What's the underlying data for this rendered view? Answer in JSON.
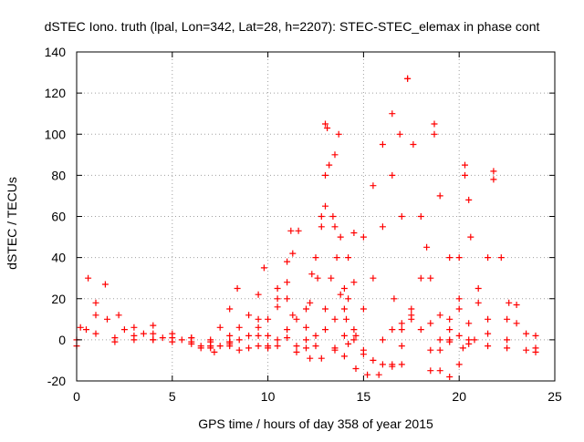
{
  "chart_data": {
    "type": "scatter",
    "title": "dSTEC Iono. truth (lpal, Lon=342, Lat=28, h=2207): STEC-STEC_elemax in phase cont",
    "xlabel": "GPS time / hours of day 358 of year 2015",
    "ylabel": "dSTEC  / TECUs",
    "xlim": [
      0,
      25
    ],
    "ylim": [
      -20,
      140
    ],
    "xticks": [
      0,
      5,
      10,
      15,
      20,
      25
    ],
    "yticks": [
      -20,
      0,
      20,
      40,
      60,
      80,
      100,
      120,
      140
    ],
    "grid": true,
    "marker": "+",
    "color": "#ff0000",
    "series": [
      {
        "x": [
          0.6,
          1.0,
          1.6,
          2.5,
          3.5,
          4.5,
          5.5,
          6.5,
          7.2
        ],
        "y": [
          30,
          18,
          10,
          5,
          3,
          1,
          0,
          -3,
          -6
        ]
      },
      {
        "x": [
          0.0,
          0.5,
          1.0,
          1.5
        ],
        "y": [
          0,
          5,
          12,
          27
        ]
      },
      {
        "x": [
          0.2,
          1.0,
          2.0,
          3.0,
          4.0,
          5.0,
          6.0,
          7.0
        ],
        "y": [
          6,
          3,
          1,
          0,
          0,
          -1,
          -2,
          -4
        ]
      },
      {
        "x": [
          2.2,
          3.0,
          4.0,
          5.0,
          6.0,
          7.0
        ],
        "y": [
          12,
          6,
          3,
          1,
          -1,
          -3
        ]
      },
      {
        "x": [
          0.0,
          2.0,
          4.0,
          6.0,
          8.0,
          10.0,
          12.0
        ],
        "y": [
          -3,
          -1,
          0,
          1,
          -1,
          -3,
          -4
        ]
      },
      {
        "x": [
          3.0,
          4.0,
          5.0,
          6.0,
          7.0,
          8.0,
          9.0
        ],
        "y": [
          2,
          7,
          3,
          1,
          -1,
          -3,
          -4
        ]
      },
      {
        "x": [
          6.5,
          7.0,
          7.5,
          8.0,
          8.4
        ],
        "y": [
          -4,
          0,
          6,
          15,
          25
        ]
      },
      {
        "x": [
          7.0,
          8.0,
          8.5,
          9.0,
          9.5,
          9.8
        ],
        "y": [
          -3,
          2,
          6,
          12,
          22,
          35
        ]
      },
      {
        "x": [
          7.5,
          8.5,
          9.5,
          10.5,
          11.0,
          11.3,
          11.6
        ],
        "y": [
          -3,
          0,
          6,
          16,
          28,
          42,
          53
        ]
      },
      {
        "x": [
          8.0,
          9.0,
          10.0,
          10.5,
          11.0,
          11.2
        ],
        "y": [
          -2,
          2,
          10,
          20,
          38,
          53
        ]
      },
      {
        "x": [
          8.5,
          9.5,
          10.5,
          11.5,
          12.3
        ],
        "y": [
          -5,
          -3,
          0,
          10,
          32
        ]
      },
      {
        "x": [
          9.5,
          10.5,
          11.0,
          11.3
        ],
        "y": [
          10,
          25,
          20,
          12
        ]
      },
      {
        "x": [
          8.0,
          10.0,
          11.0,
          12.0,
          12.6,
          12.8,
          13.0,
          13.1
        ],
        "y": [
          -1,
          2,
          5,
          15,
          30,
          55,
          80,
          103
        ]
      },
      {
        "x": [
          12.2,
          12.5,
          12.8,
          13.0
        ],
        "y": [
          18,
          40,
          60,
          65
        ]
      },
      {
        "x": [
          13.0,
          13.2,
          13.4,
          13.6,
          13.8,
          14.1,
          14.6
        ],
        "y": [
          105,
          85,
          60,
          40,
          22,
          10,
          2
        ]
      },
      {
        "x": [
          10.0,
          11.0,
          12.0,
          13.0,
          13.3,
          13.5,
          13.7
        ],
        "y": [
          -4,
          1,
          6,
          15,
          30,
          55,
          100
        ]
      },
      {
        "x": [
          13.5,
          13.8,
          14.2,
          14.5
        ],
        "y": [
          90,
          50,
          20,
          5
        ]
      },
      {
        "x": [
          9.5,
          10.5,
          11.5,
          12.2,
          12.8,
          13.5,
          14.2
        ],
        "y": [
          2,
          -3,
          -6,
          -9,
          -9,
          -5,
          -2
        ]
      },
      {
        "x": [
          11.5,
          12.5,
          13.5,
          14.0,
          14.2,
          14.5
        ],
        "y": [
          -3,
          2,
          10,
          25,
          40,
          52
        ]
      },
      {
        "x": [
          14.5,
          15.0,
          15.5,
          16.0,
          16.5,
          17.0
        ],
        "y": [
          0,
          -7,
          -10,
          -12,
          -13,
          -12
        ]
      },
      {
        "x": [
          12.0,
          13.0,
          14.0,
          14.5,
          15.0,
          15.5,
          16.0,
          16.5
        ],
        "y": [
          0,
          5,
          15,
          28,
          50,
          75,
          95,
          110
        ]
      },
      {
        "x": [
          12.5,
          13.5,
          14.0,
          14.6,
          15.2,
          15.8,
          16.5,
          17.0
        ],
        "y": [
          -3,
          -4,
          -8,
          -14,
          -17,
          -17,
          -12,
          -3
        ]
      },
      {
        "x": [
          14.0,
          15.0,
          15.5,
          16.0,
          16.5,
          16.9
        ],
        "y": [
          2,
          15,
          30,
          55,
          80,
          100
        ]
      },
      {
        "x": [
          15.0,
          16.0,
          16.6,
          17.0,
          17.3
        ],
        "y": [
          -5,
          0,
          20,
          60,
          127
        ]
      },
      {
        "x": [
          17.3,
          17.6,
          18.0,
          18.5,
          19.0
        ],
        "y": [
          127,
          95,
          60,
          30,
          12
        ]
      },
      {
        "x": [
          16.5,
          17.0,
          17.5,
          18.0,
          18.5,
          19.0,
          19.5,
          20.0
        ],
        "y": [
          5,
          8,
          10,
          5,
          -5,
          -15,
          -18,
          -12
        ]
      },
      {
        "x": [
          17.0,
          17.5,
          18.0,
          18.3,
          18.7
        ],
        "y": [
          5,
          15,
          30,
          45,
          105
        ]
      },
      {
        "x": [
          18.7,
          19.0,
          19.5,
          20.0,
          20.8
        ],
        "y": [
          100,
          70,
          40,
          15,
          0
        ]
      },
      {
        "x": [
          17.5,
          18.5,
          19.5,
          20.2
        ],
        "y": [
          12,
          8,
          0,
          -4
        ]
      },
      {
        "x": [
          18.5,
          19.0,
          19.5,
          20.0,
          20.3
        ],
        "y": [
          -15,
          -5,
          10,
          40,
          85
        ]
      },
      {
        "x": [
          20.3,
          20.6,
          21.0,
          21.5,
          22.5,
          24.0
        ],
        "y": [
          80,
          50,
          25,
          10,
          0,
          -4
        ]
      },
      {
        "x": [
          19.0,
          19.5,
          20.0,
          20.5
        ],
        "y": [
          0,
          5,
          20,
          68
        ]
      },
      {
        "x": [
          19.5,
          20.5,
          21.5,
          22.5,
          23.5,
          24.0
        ],
        "y": [
          -1,
          -2,
          -3,
          -4,
          -5,
          -6
        ]
      },
      {
        "x": [
          20.0,
          20.5,
          21.0,
          21.5,
          21.8
        ],
        "y": [
          2,
          8,
          18,
          40,
          82
        ]
      },
      {
        "x": [
          21.8,
          22.2,
          22.6,
          23.0,
          23.5,
          24.0
        ],
        "y": [
          78,
          40,
          18,
          8,
          3,
          2
        ]
      },
      {
        "x": [
          20.5,
          21.5,
          22.5,
          23.0
        ],
        "y": [
          0,
          3,
          10,
          17
        ]
      }
    ]
  }
}
